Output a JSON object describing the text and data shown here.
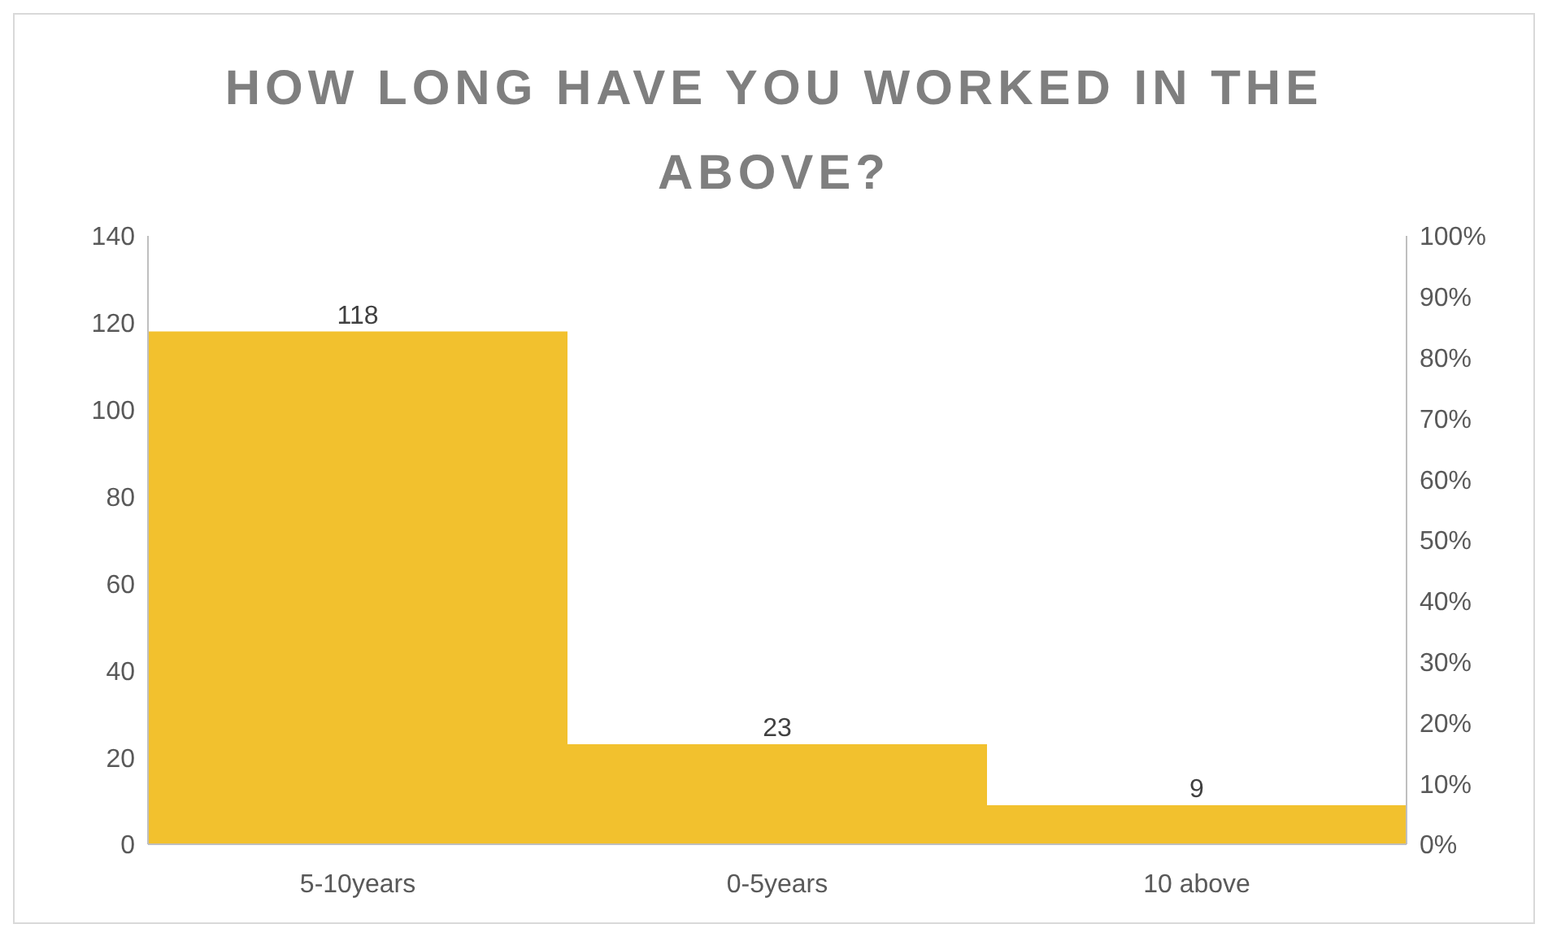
{
  "chart_data": {
    "type": "bar",
    "title": "HOW LONG HAVE YOU WORKED IN THE ABOVE?",
    "categories": [
      "5-10years",
      "0-5years",
      "10 above"
    ],
    "values": [
      118,
      23,
      9
    ],
    "color": "#f2c12e",
    "data_labels": true,
    "ylim": [
      0,
      140
    ],
    "yticks": [
      0,
      20,
      40,
      60,
      80,
      100,
      120,
      140
    ],
    "y2lim": [
      0,
      100
    ],
    "y2ticks": [
      {
        "value": 0,
        "label": "0%"
      },
      {
        "value": 10,
        "label": "10%"
      },
      {
        "value": 20,
        "label": "20%"
      },
      {
        "value": 30,
        "label": "30%"
      },
      {
        "value": 40,
        "label": "40%"
      },
      {
        "value": 50,
        "label": "50%"
      },
      {
        "value": 60,
        "label": "60%"
      },
      {
        "value": 70,
        "label": "70%"
      },
      {
        "value": 80,
        "label": "80%"
      },
      {
        "value": 90,
        "label": "90%"
      },
      {
        "value": 100,
        "label": "100%"
      }
    ],
    "grid": false,
    "legend": false
  }
}
